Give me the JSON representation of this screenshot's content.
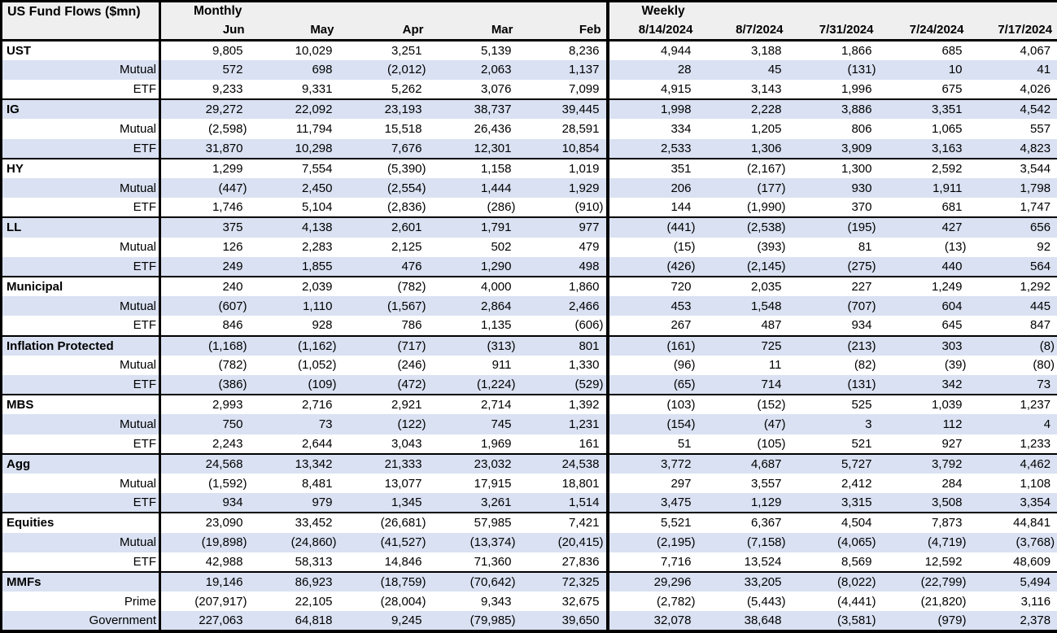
{
  "colors": {
    "header_bg": "#efefef",
    "row_alt_bg": "#d9e1f2",
    "border": "#000000",
    "text": "#000000"
  },
  "chart_data": {
    "type": "table",
    "title": "US Fund Flows ($mn)",
    "sections": [
      {
        "label": "Monthly",
        "columns": [
          "Jun",
          "May",
          "Apr",
          "Mar",
          "Feb"
        ]
      },
      {
        "label": "Weekly",
        "columns": [
          "8/14/2024",
          "8/7/2024",
          "7/31/2024",
          "7/24/2024",
          "7/17/2024"
        ]
      }
    ],
    "groups": [
      {
        "name": "UST",
        "rows": [
          {
            "label": "UST",
            "sub": false,
            "monthly": [
              "9,805",
              "10,029",
              "3,251",
              "5,139",
              "8,236"
            ],
            "weekly": [
              "4,944",
              "3,188",
              "1,866",
              "685",
              "4,067"
            ]
          },
          {
            "label": "Mutual",
            "sub": true,
            "monthly": [
              "572",
              "698",
              "(2,012)",
              "2,063",
              "1,137"
            ],
            "weekly": [
              "28",
              "45",
              "(131)",
              "10",
              "41"
            ]
          },
          {
            "label": "ETF",
            "sub": true,
            "monthly": [
              "9,233",
              "9,331",
              "5,262",
              "3,076",
              "7,099"
            ],
            "weekly": [
              "4,915",
              "3,143",
              "1,996",
              "675",
              "4,026"
            ]
          }
        ]
      },
      {
        "name": "IG",
        "rows": [
          {
            "label": "IG",
            "sub": false,
            "monthly": [
              "29,272",
              "22,092",
              "23,193",
              "38,737",
              "39,445"
            ],
            "weekly": [
              "1,998",
              "2,228",
              "3,886",
              "3,351",
              "4,542"
            ]
          },
          {
            "label": "Mutual",
            "sub": true,
            "monthly": [
              "(2,598)",
              "11,794",
              "15,518",
              "26,436",
              "28,591"
            ],
            "weekly": [
              "334",
              "1,205",
              "806",
              "1,065",
              "557"
            ]
          },
          {
            "label": "ETF",
            "sub": true,
            "monthly": [
              "31,870",
              "10,298",
              "7,676",
              "12,301",
              "10,854"
            ],
            "weekly": [
              "2,533",
              "1,306",
              "3,909",
              "3,163",
              "4,823"
            ]
          }
        ]
      },
      {
        "name": "HY",
        "rows": [
          {
            "label": "HY",
            "sub": false,
            "monthly": [
              "1,299",
              "7,554",
              "(5,390)",
              "1,158",
              "1,019"
            ],
            "weekly": [
              "351",
              "(2,167)",
              "1,300",
              "2,592",
              "3,544"
            ]
          },
          {
            "label": "Mutual",
            "sub": true,
            "monthly": [
              "(447)",
              "2,450",
              "(2,554)",
              "1,444",
              "1,929"
            ],
            "weekly": [
              "206",
              "(177)",
              "930",
              "1,911",
              "1,798"
            ]
          },
          {
            "label": "ETF",
            "sub": true,
            "monthly": [
              "1,746",
              "5,104",
              "(2,836)",
              "(286)",
              "(910)"
            ],
            "weekly": [
              "144",
              "(1,990)",
              "370",
              "681",
              "1,747"
            ]
          }
        ]
      },
      {
        "name": "LL",
        "rows": [
          {
            "label": "LL",
            "sub": false,
            "monthly": [
              "375",
              "4,138",
              "2,601",
              "1,791",
              "977"
            ],
            "weekly": [
              "(441)",
              "(2,538)",
              "(195)",
              "427",
              "656"
            ]
          },
          {
            "label": "Mutual",
            "sub": true,
            "monthly": [
              "126",
              "2,283",
              "2,125",
              "502",
              "479"
            ],
            "weekly": [
              "(15)",
              "(393)",
              "81",
              "(13)",
              "92"
            ]
          },
          {
            "label": "ETF",
            "sub": true,
            "monthly": [
              "249",
              "1,855",
              "476",
              "1,290",
              "498"
            ],
            "weekly": [
              "(426)",
              "(2,145)",
              "(275)",
              "440",
              "564"
            ]
          }
        ]
      },
      {
        "name": "Municipal",
        "rows": [
          {
            "label": "Municipal",
            "sub": false,
            "monthly": [
              "240",
              "2,039",
              "(782)",
              "4,000",
              "1,860"
            ],
            "weekly": [
              "720",
              "2,035",
              "227",
              "1,249",
              "1,292"
            ]
          },
          {
            "label": "Mutual",
            "sub": true,
            "monthly": [
              "(607)",
              "1,110",
              "(1,567)",
              "2,864",
              "2,466"
            ],
            "weekly": [
              "453",
              "1,548",
              "(707)",
              "604",
              "445"
            ]
          },
          {
            "label": "ETF",
            "sub": true,
            "monthly": [
              "846",
              "928",
              "786",
              "1,135",
              "(606)"
            ],
            "weekly": [
              "267",
              "487",
              "934",
              "645",
              "847"
            ]
          }
        ]
      },
      {
        "name": "Inflation Protected",
        "rows": [
          {
            "label": "Inflation Protected",
            "sub": false,
            "monthly": [
              "(1,168)",
              "(1,162)",
              "(717)",
              "(313)",
              "801"
            ],
            "weekly": [
              "(161)",
              "725",
              "(213)",
              "303",
              "(8)"
            ]
          },
          {
            "label": "Mutual",
            "sub": true,
            "monthly": [
              "(782)",
              "(1,052)",
              "(246)",
              "911",
              "1,330"
            ],
            "weekly": [
              "(96)",
              "11",
              "(82)",
              "(39)",
              "(80)"
            ]
          },
          {
            "label": "ETF",
            "sub": true,
            "monthly": [
              "(386)",
              "(109)",
              "(472)",
              "(1,224)",
              "(529)"
            ],
            "weekly": [
              "(65)",
              "714",
              "(131)",
              "342",
              "73"
            ]
          }
        ]
      },
      {
        "name": "MBS",
        "rows": [
          {
            "label": "MBS",
            "sub": false,
            "monthly": [
              "2,993",
              "2,716",
              "2,921",
              "2,714",
              "1,392"
            ],
            "weekly": [
              "(103)",
              "(152)",
              "525",
              "1,039",
              "1,237"
            ]
          },
          {
            "label": "Mutual",
            "sub": true,
            "monthly": [
              "750",
              "73",
              "(122)",
              "745",
              "1,231"
            ],
            "weekly": [
              "(154)",
              "(47)",
              "3",
              "112",
              "4"
            ]
          },
          {
            "label": "ETF",
            "sub": true,
            "monthly": [
              "2,243",
              "2,644",
              "3,043",
              "1,969",
              "161"
            ],
            "weekly": [
              "51",
              "(105)",
              "521",
              "927",
              "1,233"
            ]
          }
        ]
      },
      {
        "name": "Agg",
        "rows": [
          {
            "label": "Agg",
            "sub": false,
            "monthly": [
              "24,568",
              "13,342",
              "21,333",
              "23,032",
              "24,538"
            ],
            "weekly": [
              "3,772",
              "4,687",
              "5,727",
              "3,792",
              "4,462"
            ]
          },
          {
            "label": "Mutual",
            "sub": true,
            "monthly": [
              "(1,592)",
              "8,481",
              "13,077",
              "17,915",
              "18,801"
            ],
            "weekly": [
              "297",
              "3,557",
              "2,412",
              "284",
              "1,108"
            ]
          },
          {
            "label": "ETF",
            "sub": true,
            "monthly": [
              "934",
              "979",
              "1,345",
              "3,261",
              "1,514"
            ],
            "weekly": [
              "3,475",
              "1,129",
              "3,315",
              "3,508",
              "3,354"
            ]
          }
        ]
      },
      {
        "name": "Equities",
        "rows": [
          {
            "label": "Equities",
            "sub": false,
            "monthly": [
              "23,090",
              "33,452",
              "(26,681)",
              "57,985",
              "7,421"
            ],
            "weekly": [
              "5,521",
              "6,367",
              "4,504",
              "7,873",
              "44,841"
            ]
          },
          {
            "label": "Mutual",
            "sub": true,
            "monthly": [
              "(19,898)",
              "(24,860)",
              "(41,527)",
              "(13,374)",
              "(20,415)"
            ],
            "weekly": [
              "(2,195)",
              "(7,158)",
              "(4,065)",
              "(4,719)",
              "(3,768)"
            ]
          },
          {
            "label": "ETF",
            "sub": true,
            "monthly": [
              "42,988",
              "58,313",
              "14,846",
              "71,360",
              "27,836"
            ],
            "weekly": [
              "7,716",
              "13,524",
              "8,569",
              "12,592",
              "48,609"
            ]
          }
        ]
      },
      {
        "name": "MMFs",
        "rows": [
          {
            "label": "MMFs",
            "sub": false,
            "monthly": [
              "19,146",
              "86,923",
              "(18,759)",
              "(70,642)",
              "72,325"
            ],
            "weekly": [
              "29,296",
              "33,205",
              "(8,022)",
              "(22,799)",
              "5,494"
            ]
          },
          {
            "label": "Prime",
            "sub": true,
            "monthly": [
              "(207,917)",
              "22,105",
              "(28,004)",
              "9,343",
              "32,675"
            ],
            "weekly": [
              "(2,782)",
              "(5,443)",
              "(4,441)",
              "(21,820)",
              "3,116"
            ]
          },
          {
            "label": "Government",
            "sub": true,
            "monthly": [
              "227,063",
              "64,818",
              "9,245",
              "(79,985)",
              "39,650"
            ],
            "weekly": [
              "32,078",
              "38,648",
              "(3,581)",
              "(979)",
              "2,378"
            ]
          }
        ]
      }
    ]
  }
}
